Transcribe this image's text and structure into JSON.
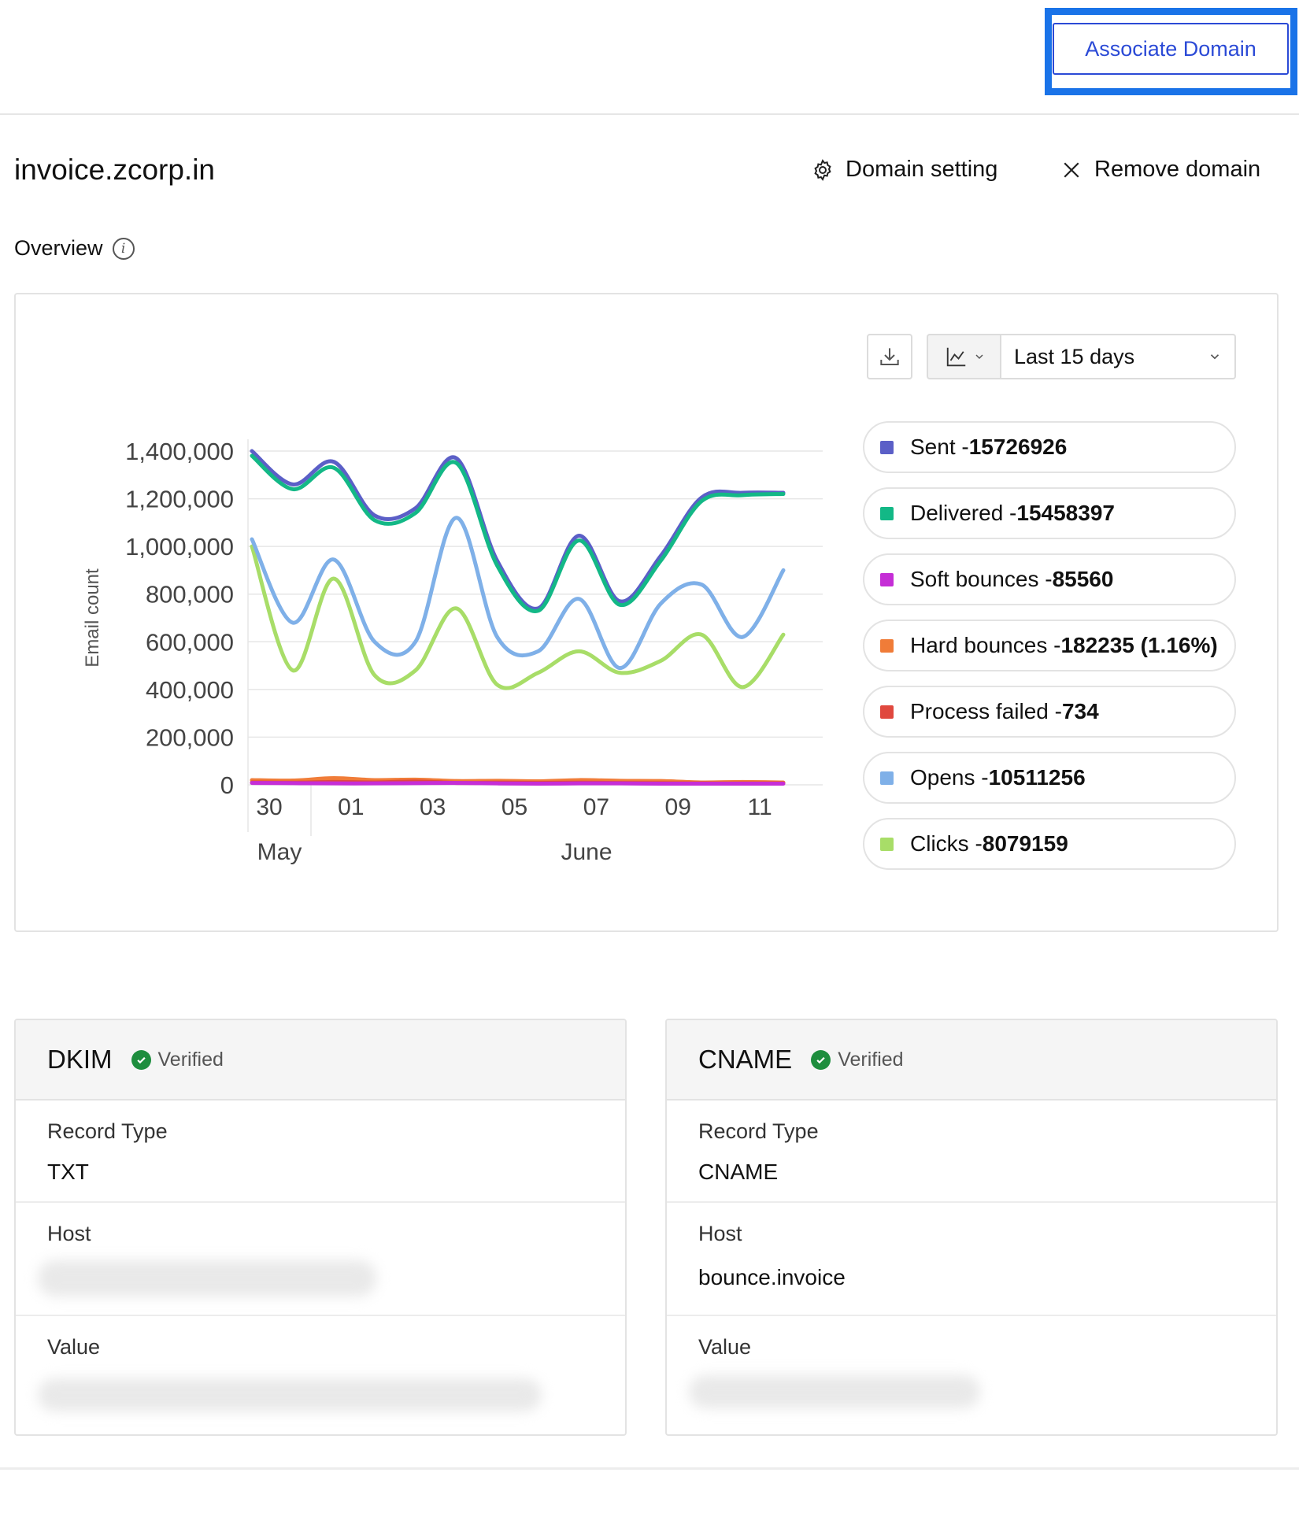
{
  "header": {
    "associate_label": "Associate Domain"
  },
  "domain": {
    "name": "invoice.zcorp.in",
    "setting_label": "Domain setting",
    "remove_label": "Remove domain"
  },
  "overview": {
    "title": "Overview",
    "range_label": "Last 15 days",
    "legend": [
      {
        "label": "Sent - ",
        "value": "15726926",
        "color": "#5b5fc7"
      },
      {
        "label": "Delivered - ",
        "value": "15458397",
        "color": "#13b886"
      },
      {
        "label": "Soft bounces - ",
        "value": "85560",
        "color": "#c52ed6"
      },
      {
        "label": "Hard bounces - ",
        "value": "182235 (1.16%)",
        "color": "#f07c38"
      },
      {
        "label": "Process failed - ",
        "value": "734",
        "color": "#e0483e"
      },
      {
        "label": "Opens - ",
        "value": "10511256",
        "color": "#7fb0e8"
      },
      {
        "label": "Clicks - ",
        "value": "8079159",
        "color": "#a8dd68"
      }
    ]
  },
  "chart_data": {
    "type": "line",
    "ylabel": "Email count",
    "ylim": [
      0,
      1400000
    ],
    "y_ticks": [
      "0",
      "200,000",
      "400,000",
      "600,000",
      "800,000",
      "1,000,000",
      "1,200,000",
      "1,400,000"
    ],
    "x_tick_labels": [
      "30",
      "01",
      "03",
      "05",
      "07",
      "09",
      "11"
    ],
    "x_group_labels": [
      "May",
      "June"
    ],
    "x": [
      0,
      1,
      2,
      3,
      4,
      5,
      6,
      7,
      8,
      9,
      10,
      11,
      12,
      13
    ],
    "series": [
      {
        "name": "Sent",
        "color": "#5b5fc7",
        "values": [
          1400000,
          1260000,
          1355000,
          1130000,
          1160000,
          1370000,
          940000,
          740000,
          1045000,
          770000,
          960000,
          1205000,
          1225000,
          1225000
        ]
      },
      {
        "name": "Delivered",
        "color": "#13b886",
        "values": [
          1380000,
          1240000,
          1330000,
          1110000,
          1140000,
          1350000,
          920000,
          730000,
          1025000,
          755000,
          940000,
          1190000,
          1215000,
          1220000
        ]
      },
      {
        "name": "Soft bounces",
        "color": "#c52ed6",
        "values": [
          8000,
          7000,
          6000,
          6000,
          7000,
          8000,
          6000,
          5000,
          6000,
          6000,
          5000,
          5000,
          5000,
          5000
        ]
      },
      {
        "name": "Hard bounces",
        "color": "#f07c38",
        "values": [
          20000,
          18000,
          28000,
          20000,
          22000,
          16000,
          17000,
          15000,
          20000,
          17000,
          16000,
          10000,
          12000,
          10000
        ]
      },
      {
        "name": "Process failed",
        "color": "#e0483e",
        "values": [
          10000,
          9000,
          12000,
          10000,
          14000,
          8000,
          9000,
          8000,
          9000,
          8000,
          7000,
          6000,
          6000,
          6000
        ]
      },
      {
        "name": "Opens",
        "color": "#7fb0e8",
        "values": [
          1030000,
          680000,
          945000,
          600000,
          600000,
          1120000,
          620000,
          560000,
          780000,
          490000,
          760000,
          840000,
          620000,
          900000
        ]
      },
      {
        "name": "Clicks",
        "color": "#a8dd68",
        "values": [
          1000000,
          480000,
          865000,
          460000,
          480000,
          740000,
          420000,
          470000,
          560000,
          470000,
          520000,
          630000,
          410000,
          630000
        ]
      }
    ]
  },
  "records": [
    {
      "title": "DKIM",
      "status": "Verified",
      "record_type_label": "Record Type",
      "record_type_value": "TXT",
      "host_label": "Host",
      "host_value": "",
      "value_label": "Value"
    },
    {
      "title": "CNAME",
      "status": "Verified",
      "record_type_label": "Record Type",
      "record_type_value": "CNAME",
      "host_label": "Host",
      "host_value": "bounce.invoice",
      "value_label": "Value"
    }
  ]
}
